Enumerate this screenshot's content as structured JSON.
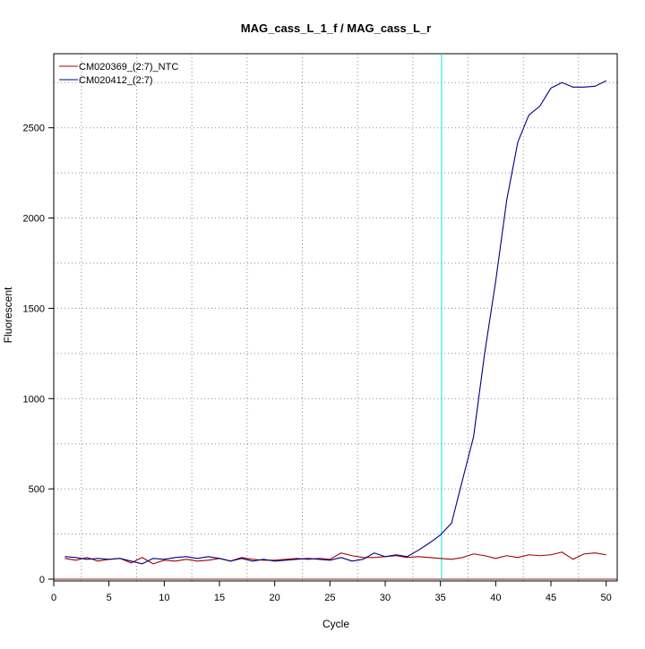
{
  "chart_data": {
    "type": "line",
    "title": "MAG_cass_L_1_f / MAG_cass_L_r",
    "xlabel": "Cycle",
    "ylabel": "Fluorescent",
    "xlim": [
      0,
      51
    ],
    "ylim": [
      -10,
      2910
    ],
    "x_ticks": [
      0,
      5,
      10,
      15,
      20,
      25,
      30,
      35,
      40,
      45,
      50
    ],
    "x_tick_labels": [
      "0",
      "5",
      "10",
      "15",
      "20",
      "25",
      "30",
      "35",
      "40",
      "45",
      "50"
    ],
    "y_ticks": [
      0,
      500,
      1000,
      1500,
      2000,
      2500
    ],
    "y_tick_labels": [
      "0",
      "500",
      "1000",
      "1500",
      "2000",
      "2500"
    ],
    "grid": true,
    "legend_position": "top-left",
    "threshold_cycle": 35.1,
    "threshold_color": "#00e5e5",
    "baseline_color": "#8b1a1a",
    "x": [
      1,
      2,
      3,
      4,
      5,
      6,
      7,
      8,
      9,
      10,
      11,
      12,
      13,
      14,
      15,
      16,
      17,
      18,
      19,
      20,
      21,
      22,
      23,
      24,
      25,
      26,
      27,
      28,
      29,
      30,
      31,
      32,
      33,
      34,
      35,
      36,
      37,
      38,
      39,
      40,
      41,
      42,
      43,
      44,
      45,
      46,
      47,
      48,
      49,
      50
    ],
    "series": [
      {
        "name": "CM020369_(2:7)_NTC",
        "color": "#a50000",
        "values": [
          115,
          105,
          120,
          100,
          110,
          115,
          90,
          120,
          85,
          105,
          100,
          110,
          100,
          105,
          115,
          100,
          120,
          110,
          105,
          105,
          110,
          115,
          110,
          115,
          110,
          145,
          130,
          120,
          120,
          125,
          130,
          120,
          125,
          120,
          115,
          110,
          120,
          140,
          130,
          115,
          130,
          120,
          135,
          130,
          135,
          150,
          110,
          140,
          145,
          135
        ]
      },
      {
        "name": "CM020412_(2:7)",
        "color": "#000080",
        "values": [
          125,
          120,
          110,
          115,
          110,
          115,
          100,
          85,
          115,
          110,
          120,
          125,
          115,
          125,
          115,
          100,
          115,
          100,
          110,
          100,
          105,
          110,
          115,
          110,
          105,
          120,
          100,
          110,
          145,
          125,
          135,
          125,
          160,
          200,
          245,
          310,
          550,
          790,
          1250,
          1650,
          2100,
          2420,
          2570,
          2620,
          2720,
          2750,
          2725,
          2725,
          2730,
          2760
        ]
      }
    ]
  }
}
